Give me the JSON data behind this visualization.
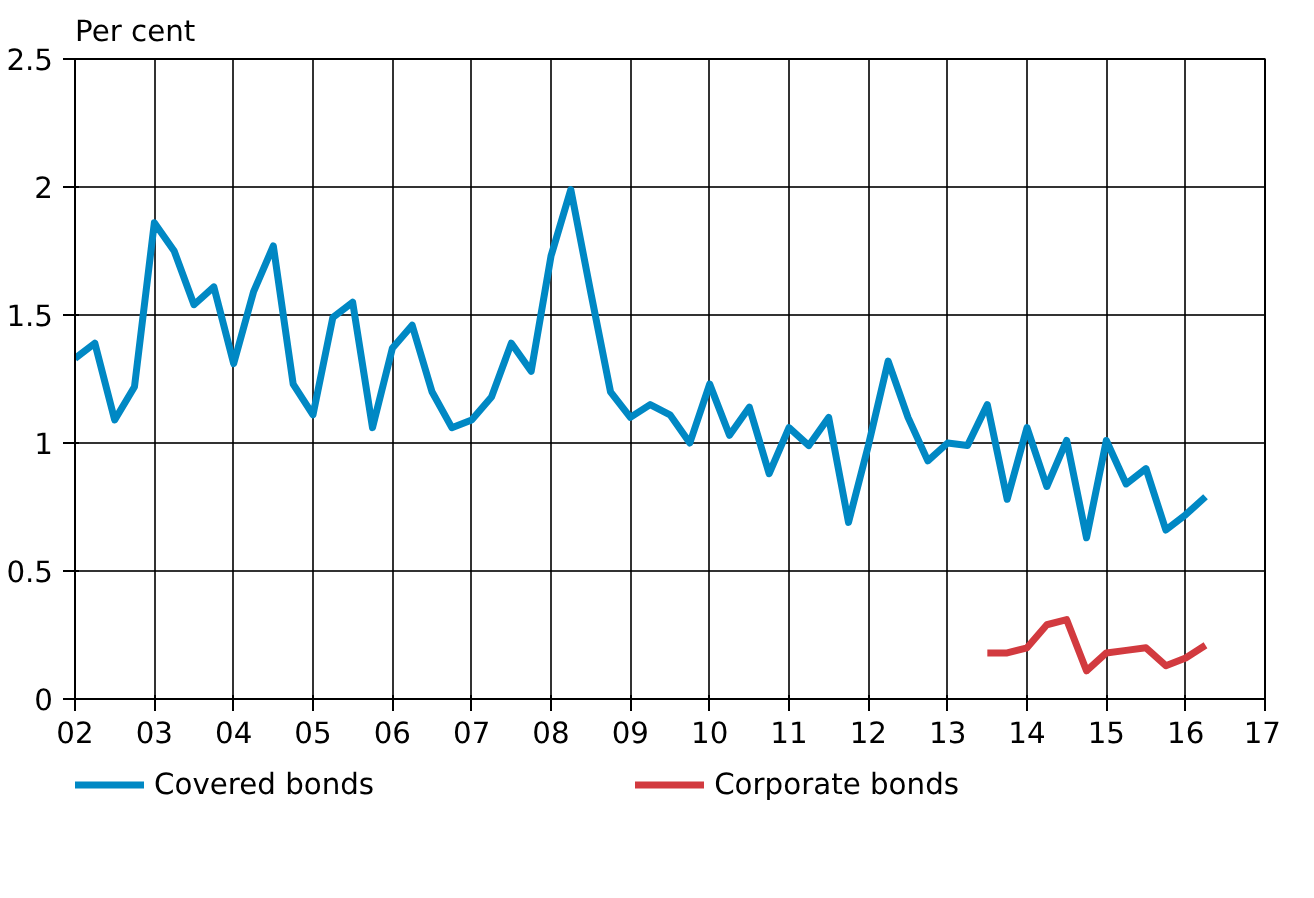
{
  "chart_data": {
    "type": "line",
    "ylabel": "Per cent",
    "x": [
      2002,
      2002.25,
      2002.5,
      2002.75,
      2003,
      2003.25,
      2003.5,
      2003.75,
      2004,
      2004.25,
      2004.5,
      2004.75,
      2005,
      2005.25,
      2005.5,
      2005.75,
      2006,
      2006.25,
      2006.5,
      2006.75,
      2007,
      2007.25,
      2007.5,
      2007.75,
      2008,
      2008.25,
      2008.5,
      2008.75,
      2009,
      2009.25,
      2009.5,
      2009.75,
      2010,
      2010.25,
      2010.5,
      2010.75,
      2011,
      2011.25,
      2011.5,
      2011.75,
      2012,
      2012.25,
      2012.5,
      2012.75,
      2013,
      2013.25,
      2013.5,
      2013.75,
      2014,
      2014.25,
      2014.5,
      2014.75,
      2015,
      2015.25,
      2015.5,
      2015.75,
      2016,
      2016.25
    ],
    "series": [
      {
        "name": "Covered bonds",
        "color": "#0088c4",
        "values": [
          1.33,
          1.39,
          1.09,
          1.22,
          1.86,
          1.75,
          1.54,
          1.61,
          1.31,
          1.59,
          1.77,
          1.23,
          1.11,
          1.49,
          1.55,
          1.06,
          1.37,
          1.46,
          1.2,
          1.06,
          1.09,
          1.18,
          1.39,
          1.28,
          1.73,
          1.99,
          1.59,
          1.2,
          1.1,
          1.15,
          1.11,
          1.0,
          1.23,
          1.03,
          1.14,
          0.88,
          1.06,
          0.99,
          1.1,
          0.69,
          0.99,
          1.32,
          1.1,
          0.93,
          1.0,
          0.99,
          1.15,
          0.78,
          1.06,
          0.83,
          1.01,
          0.63,
          1.01,
          0.84,
          0.9,
          0.66,
          0.72,
          0.79
        ]
      },
      {
        "name": "Corporate bonds",
        "color": "#d23a3f",
        "x": [
          2013.5,
          2013.75,
          2014,
          2014.25,
          2014.5,
          2014.75,
          2015,
          2015.25,
          2015.5,
          2015.75,
          2016,
          2016.25
        ],
        "values": [
          0.18,
          0.18,
          0.2,
          0.29,
          0.31,
          0.11,
          0.18,
          0.19,
          0.2,
          0.13,
          0.16,
          0.21
        ]
      }
    ],
    "xlim": [
      2002,
      2017
    ],
    "xticks": [
      {
        "value": 2002,
        "label": "02"
      },
      {
        "value": 2003,
        "label": "03"
      },
      {
        "value": 2004,
        "label": "04"
      },
      {
        "value": 2005,
        "label": "05"
      },
      {
        "value": 2006,
        "label": "06"
      },
      {
        "value": 2007,
        "label": "07"
      },
      {
        "value": 2008,
        "label": "08"
      },
      {
        "value": 2009,
        "label": "09"
      },
      {
        "value": 2010,
        "label": "10"
      },
      {
        "value": 2011,
        "label": "11"
      },
      {
        "value": 2012,
        "label": "12"
      },
      {
        "value": 2013,
        "label": "13"
      },
      {
        "value": 2014,
        "label": "14"
      },
      {
        "value": 2015,
        "label": "15"
      },
      {
        "value": 2016,
        "label": "16"
      },
      {
        "value": 2017,
        "label": "17"
      }
    ],
    "ylim": [
      0,
      2.5
    ],
    "yticks": [
      0,
      0.5,
      1,
      1.5,
      2,
      2.5
    ],
    "grid": true,
    "legend": "bottom",
    "line_style": "solid",
    "marker": "none"
  }
}
